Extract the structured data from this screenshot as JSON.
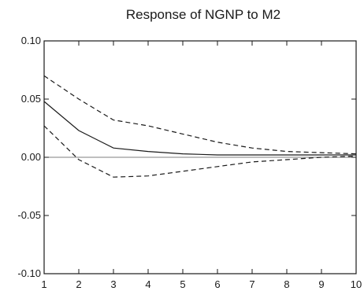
{
  "chart_data": {
    "type": "line",
    "title": "Response of NGNP to M2",
    "xlabel": "",
    "ylabel": "",
    "x": [
      1,
      2,
      3,
      4,
      5,
      6,
      7,
      8,
      9,
      10
    ],
    "xlim": [
      1,
      10
    ],
    "ylim": [
      -0.1,
      0.1
    ],
    "x_ticks": [
      "1",
      "2",
      "3",
      "4",
      "5",
      "6",
      "7",
      "8",
      "9",
      "10"
    ],
    "y_ticks": [
      {
        "value": 0.1,
        "label": "0.10"
      },
      {
        "value": 0.05,
        "label": "0.05"
      },
      {
        "value": 0.0,
        "label": "0.00"
      },
      {
        "value": -0.05,
        "label": "-0.05"
      },
      {
        "value": -0.1,
        "label": "-0.10"
      }
    ],
    "zero_line": true,
    "grid": false,
    "series": [
      {
        "style": "solid",
        "values": [
          0.048,
          0.023,
          0.008,
          0.005,
          0.003,
          0.002,
          0.002,
          0.002,
          0.002,
          0.002
        ]
      },
      {
        "style": "dashed",
        "values": [
          0.07,
          0.05,
          0.032,
          0.027,
          0.02,
          0.013,
          0.008,
          0.005,
          0.004,
          0.003
        ]
      },
      {
        "style": "dashed",
        "values": [
          0.027,
          -0.002,
          -0.017,
          -0.016,
          -0.012,
          -0.008,
          -0.004,
          -0.002,
          0.0,
          0.001
        ]
      }
    ]
  }
}
